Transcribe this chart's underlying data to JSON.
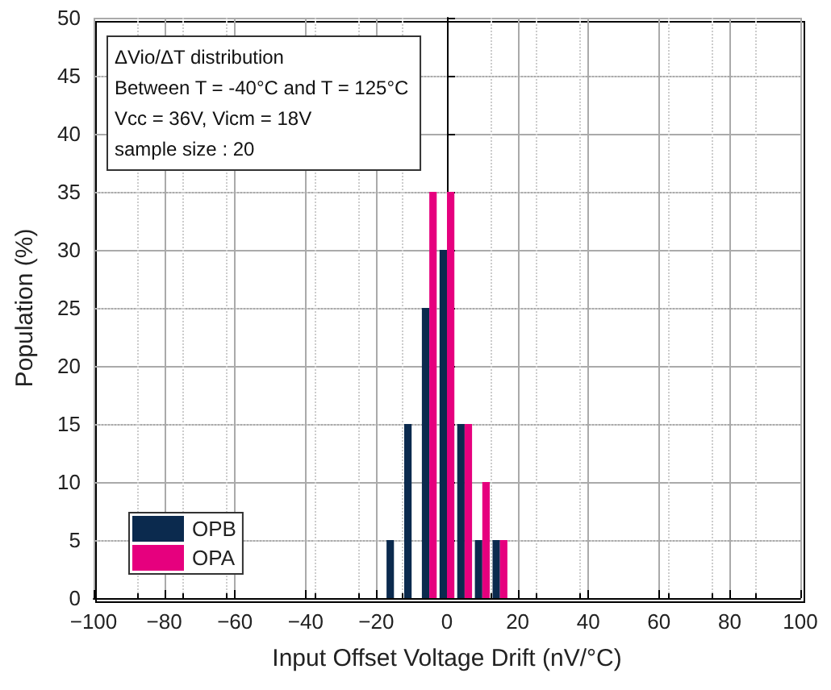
{
  "chart_data": {
    "type": "bar",
    "xlabel": "Input Offset Voltage Drift (nV/°C)",
    "ylabel": "Population (%)",
    "x": [
      -15,
      -10,
      -5,
      0,
      5,
      10,
      15
    ],
    "series": [
      {
        "name": "OPB",
        "color": "#0b2a4e",
        "values": [
          5,
          15,
          25,
          30,
          15,
          5,
          5
        ]
      },
      {
        "name": "OPA",
        "color": "#e6007e",
        "values": [
          0,
          0,
          35,
          35,
          15,
          10,
          5
        ]
      }
    ],
    "xlim": [
      -100,
      100
    ],
    "xticks": [
      -100,
      -80,
      -60,
      -40,
      -20,
      0,
      20,
      40,
      60,
      80,
      100
    ],
    "ylim": [
      0,
      50
    ],
    "yticks": [
      0,
      5,
      10,
      15,
      20,
      25,
      30,
      35,
      40,
      45,
      50
    ],
    "grid": true,
    "legend": "bottom left",
    "annotations": [
      "ΔVio/ΔT distribution",
      "Between T = -40°C and T = 125°C",
      "Vcc = 36V, Vicm = 18V",
      "sample size : 20"
    ]
  }
}
